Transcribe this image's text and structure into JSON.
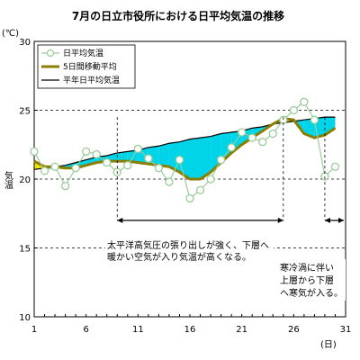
{
  "chart_data": {
    "type": "line",
    "title": "7月の日立市役所における日平均気温の推移",
    "y_unit": "(℃)",
    "ylabel": "気温",
    "x_unit": "(日)",
    "xlim": [
      1,
      31
    ],
    "ylim": [
      10,
      30
    ],
    "x_ticks": [
      1,
      6,
      11,
      16,
      21,
      26,
      31
    ],
    "y_ticks": [
      10,
      15,
      20,
      25,
      30
    ],
    "grid": "horizontal dashed at 15, 20, 25",
    "legend_position": "top-left",
    "days": [
      1,
      2,
      3,
      4,
      5,
      6,
      7,
      8,
      9,
      10,
      11,
      12,
      13,
      14,
      15,
      16,
      17,
      18,
      19,
      20,
      21,
      22,
      23,
      24,
      25,
      26,
      27,
      28,
      29,
      30,
      31
    ],
    "series": [
      {
        "name": "日平均気温",
        "color": "#9acc99",
        "marker": "circle",
        "values": [
          22.0,
          20.6,
          20.9,
          19.5,
          20.8,
          22.0,
          21.8,
          21.2,
          20.5,
          21.0,
          22.2,
          21.5,
          20.8,
          19.8,
          21.4,
          18.6,
          19.2,
          20.0,
          21.4,
          22.3,
          23.4,
          23.0,
          22.7,
          23.3,
          24.3,
          25.0,
          25.6,
          24.3,
          20.2,
          20.9,
          null
        ]
      },
      {
        "name": "5日間移動平均",
        "color": "#8b7d00",
        "values": [
          21.3,
          20.9,
          20.9,
          20.8,
          20.8,
          21.0,
          21.2,
          21.3,
          21.3,
          21.3,
          21.2,
          21.1,
          21.0,
          20.9,
          20.5,
          20.0,
          20.0,
          20.5,
          21.2,
          21.9,
          22.5,
          23.0,
          23.5,
          24.0,
          24.4,
          24.3,
          23.3,
          23.0,
          23.2,
          23.7,
          null
        ]
      },
      {
        "name": "平年日平均気温",
        "color": "#000000",
        "values": [
          20.7,
          20.8,
          20.9,
          21.0,
          21.2,
          21.4,
          21.6,
          21.7,
          21.9,
          22.0,
          22.1,
          22.3,
          22.4,
          22.6,
          22.7,
          22.9,
          23.0,
          23.1,
          23.3,
          23.4,
          23.5,
          23.7,
          23.8,
          24.0,
          24.1,
          24.2,
          24.3,
          24.4,
          24.5,
          24.5,
          null
        ]
      }
    ],
    "fill_below_normal_color": "#00d4e8",
    "fill_above_normal_color": "#f2e600",
    "annotations": [
      {
        "id": "pacific",
        "text_lines": [
          "太平洋高気圧の張り出しが強く、下層へ",
          "暖かい空気が入り気温が高くなる。"
        ],
        "range": [
          9,
          25
        ],
        "arrow_y": 17.0
      },
      {
        "id": "cold_vortex",
        "text_lines": [
          "寒冷渦に伴い",
          "上層から下層",
          "へ寒気が入る。"
        ],
        "range": [
          29,
          31
        ],
        "arrow_y": 17.0
      }
    ]
  }
}
